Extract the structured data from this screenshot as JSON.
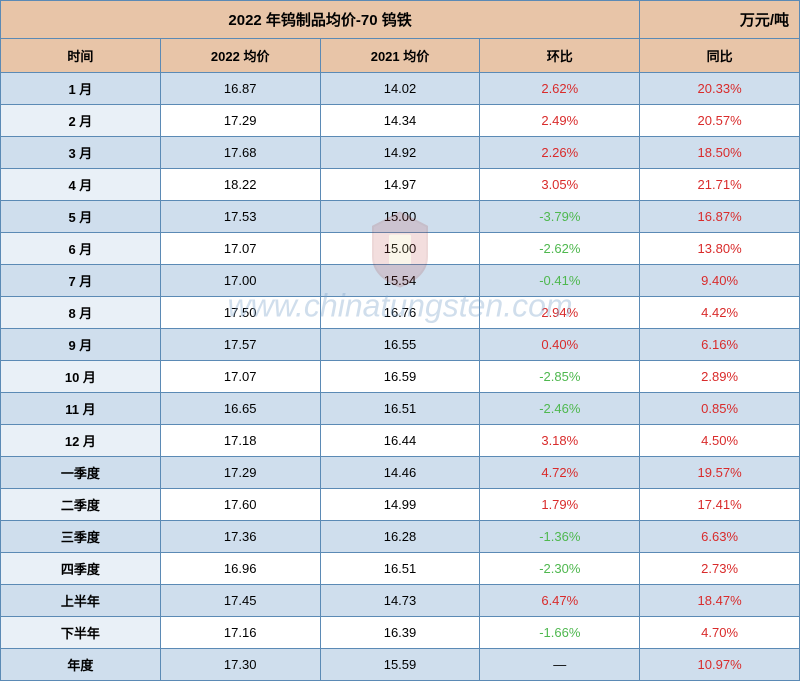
{
  "title": "2022 年钨制品均价-70 钨铁",
  "unit": "万元/吨",
  "columns": [
    "时间",
    "2022 均价",
    "2021 均价",
    "环比",
    "同比"
  ],
  "column_widths": [
    "20%",
    "20%",
    "20%",
    "20%",
    "20%"
  ],
  "rows": [
    {
      "time": "1 月",
      "avg2022": "16.87",
      "avg2021": "14.02",
      "mom": "2.62%",
      "mom_sign": "pos",
      "yoy": "20.33%",
      "yoy_sign": "pos"
    },
    {
      "time": "2 月",
      "avg2022": "17.29",
      "avg2021": "14.34",
      "mom": "2.49%",
      "mom_sign": "pos",
      "yoy": "20.57%",
      "yoy_sign": "pos"
    },
    {
      "time": "3 月",
      "avg2022": "17.68",
      "avg2021": "14.92",
      "mom": "2.26%",
      "mom_sign": "pos",
      "yoy": "18.50%",
      "yoy_sign": "pos"
    },
    {
      "time": "4 月",
      "avg2022": "18.22",
      "avg2021": "14.97",
      "mom": "3.05%",
      "mom_sign": "pos",
      "yoy": "21.71%",
      "yoy_sign": "pos"
    },
    {
      "time": "5 月",
      "avg2022": "17.53",
      "avg2021": "15.00",
      "mom": "-3.79%",
      "mom_sign": "neg",
      "yoy": "16.87%",
      "yoy_sign": "pos"
    },
    {
      "time": "6 月",
      "avg2022": "17.07",
      "avg2021": "15.00",
      "mom": "-2.62%",
      "mom_sign": "neg",
      "yoy": "13.80%",
      "yoy_sign": "pos"
    },
    {
      "time": "7 月",
      "avg2022": "17.00",
      "avg2021": "15.54",
      "mom": "-0.41%",
      "mom_sign": "neg",
      "yoy": "9.40%",
      "yoy_sign": "pos"
    },
    {
      "time": "8 月",
      "avg2022": "17.50",
      "avg2021": "16.76",
      "mom": "2.94%",
      "mom_sign": "pos",
      "yoy": "4.42%",
      "yoy_sign": "pos"
    },
    {
      "time": "9 月",
      "avg2022": "17.57",
      "avg2021": "16.55",
      "mom": "0.40%",
      "mom_sign": "pos",
      "yoy": "6.16%",
      "yoy_sign": "pos"
    },
    {
      "time": "10 月",
      "avg2022": "17.07",
      "avg2021": "16.59",
      "mom": "-2.85%",
      "mom_sign": "neg",
      "yoy": "2.89%",
      "yoy_sign": "pos"
    },
    {
      "time": "11 月",
      "avg2022": "16.65",
      "avg2021": "16.51",
      "mom": "-2.46%",
      "mom_sign": "neg",
      "yoy": "0.85%",
      "yoy_sign": "pos"
    },
    {
      "time": "12 月",
      "avg2022": "17.18",
      "avg2021": "16.44",
      "mom": "3.18%",
      "mom_sign": "pos",
      "yoy": "4.50%",
      "yoy_sign": "pos"
    },
    {
      "time": "一季度",
      "avg2022": "17.29",
      "avg2021": "14.46",
      "mom": "4.72%",
      "mom_sign": "pos",
      "yoy": "19.57%",
      "yoy_sign": "pos"
    },
    {
      "time": "二季度",
      "avg2022": "17.60",
      "avg2021": "14.99",
      "mom": "1.79%",
      "mom_sign": "pos",
      "yoy": "17.41%",
      "yoy_sign": "pos"
    },
    {
      "time": "三季度",
      "avg2022": "17.36",
      "avg2021": "16.28",
      "mom": "-1.36%",
      "mom_sign": "neg",
      "yoy": "6.63%",
      "yoy_sign": "pos"
    },
    {
      "time": "四季度",
      "avg2022": "16.96",
      "avg2021": "16.51",
      "mom": "-2.30%",
      "mom_sign": "neg",
      "yoy": "2.73%",
      "yoy_sign": "pos"
    },
    {
      "time": "上半年",
      "avg2022": "17.45",
      "avg2021": "14.73",
      "mom": "6.47%",
      "mom_sign": "pos",
      "yoy": "18.47%",
      "yoy_sign": "pos"
    },
    {
      "time": "下半年",
      "avg2022": "17.16",
      "avg2021": "16.39",
      "mom": "-1.66%",
      "mom_sign": "neg",
      "yoy": "4.70%",
      "yoy_sign": "pos"
    },
    {
      "time": "年度",
      "avg2022": "17.30",
      "avg2021": "15.59",
      "mom": "—",
      "mom_sign": "neutral",
      "yoy": "10.97%",
      "yoy_sign": "pos"
    }
  ],
  "watermark_text": "www.chinatungsten.com",
  "colors": {
    "header_bg": "#e8c5a8",
    "border": "#5b8ab5",
    "row_even_bg": "#cfdeed",
    "row_odd_time_bg": "#e9f0f7",
    "row_odd_bg": "#ffffff",
    "positive": "#d92b2b",
    "negative": "#4fb84f",
    "watermark": "rgba(120,160,200,0.35)"
  },
  "fontsize": {
    "title": 15,
    "header": 13,
    "body": 13,
    "unit": 12,
    "watermark": 32
  }
}
